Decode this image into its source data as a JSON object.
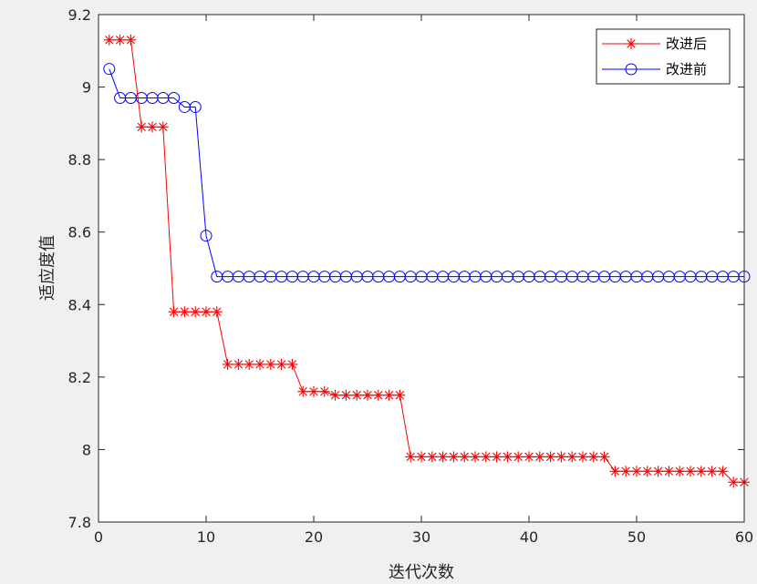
{
  "chart_data": {
    "type": "line",
    "title": "",
    "xlabel": "迭代次数",
    "ylabel": "适应度值",
    "xlim": [
      0,
      60
    ],
    "ylim": [
      7.8,
      9.2
    ],
    "xticks": [
      0,
      10,
      20,
      30,
      40,
      50,
      60
    ],
    "yticks": [
      7.8,
      8.0,
      8.2,
      8.4,
      8.6,
      8.8,
      9.0,
      9.2
    ],
    "ytick_labels": [
      "7.8",
      "8",
      "8.2",
      "8.4",
      "8.6",
      "8.8",
      "9",
      "9.2"
    ],
    "grid": false,
    "legend_position": "top-right",
    "x": [
      1,
      2,
      3,
      4,
      5,
      6,
      7,
      8,
      9,
      10,
      11,
      12,
      13,
      14,
      15,
      16,
      17,
      18,
      19,
      20,
      21,
      22,
      23,
      24,
      25,
      26,
      27,
      28,
      29,
      30,
      31,
      32,
      33,
      34,
      35,
      36,
      37,
      38,
      39,
      40,
      41,
      42,
      43,
      44,
      45,
      46,
      47,
      48,
      49,
      50,
      51,
      52,
      53,
      54,
      55,
      56,
      57,
      58,
      59,
      60
    ],
    "series": [
      {
        "name": "改进后",
        "color": "#ff0000",
        "marker": "asterisk",
        "values": [
          9.13,
          9.13,
          9.13,
          8.89,
          8.89,
          8.89,
          8.38,
          8.38,
          8.38,
          8.38,
          8.38,
          8.235,
          8.235,
          8.235,
          8.235,
          8.235,
          8.235,
          8.235,
          8.16,
          8.16,
          8.16,
          8.15,
          8.15,
          8.15,
          8.15,
          8.15,
          8.15,
          8.15,
          7.98,
          7.98,
          7.98,
          7.98,
          7.98,
          7.98,
          7.98,
          7.98,
          7.98,
          7.98,
          7.98,
          7.98,
          7.98,
          7.98,
          7.98,
          7.98,
          7.98,
          7.98,
          7.98,
          7.94,
          7.94,
          7.94,
          7.94,
          7.94,
          7.94,
          7.94,
          7.94,
          7.94,
          7.94,
          7.94,
          7.91,
          7.91
        ]
      },
      {
        "name": "改进前",
        "color": "#0000ff",
        "marker": "circle",
        "values": [
          9.05,
          8.97,
          8.97,
          8.97,
          8.97,
          8.97,
          8.97,
          8.945,
          8.945,
          8.59,
          8.477,
          8.477,
          8.477,
          8.477,
          8.477,
          8.477,
          8.477,
          8.477,
          8.477,
          8.477,
          8.477,
          8.477,
          8.477,
          8.477,
          8.477,
          8.477,
          8.477,
          8.477,
          8.477,
          8.477,
          8.477,
          8.477,
          8.477,
          8.477,
          8.477,
          8.477,
          8.477,
          8.477,
          8.477,
          8.477,
          8.477,
          8.477,
          8.477,
          8.477,
          8.477,
          8.477,
          8.477,
          8.477,
          8.477,
          8.477,
          8.477,
          8.477,
          8.477,
          8.477,
          8.477,
          8.477,
          8.477,
          8.477,
          8.477,
          8.477
        ]
      }
    ]
  }
}
